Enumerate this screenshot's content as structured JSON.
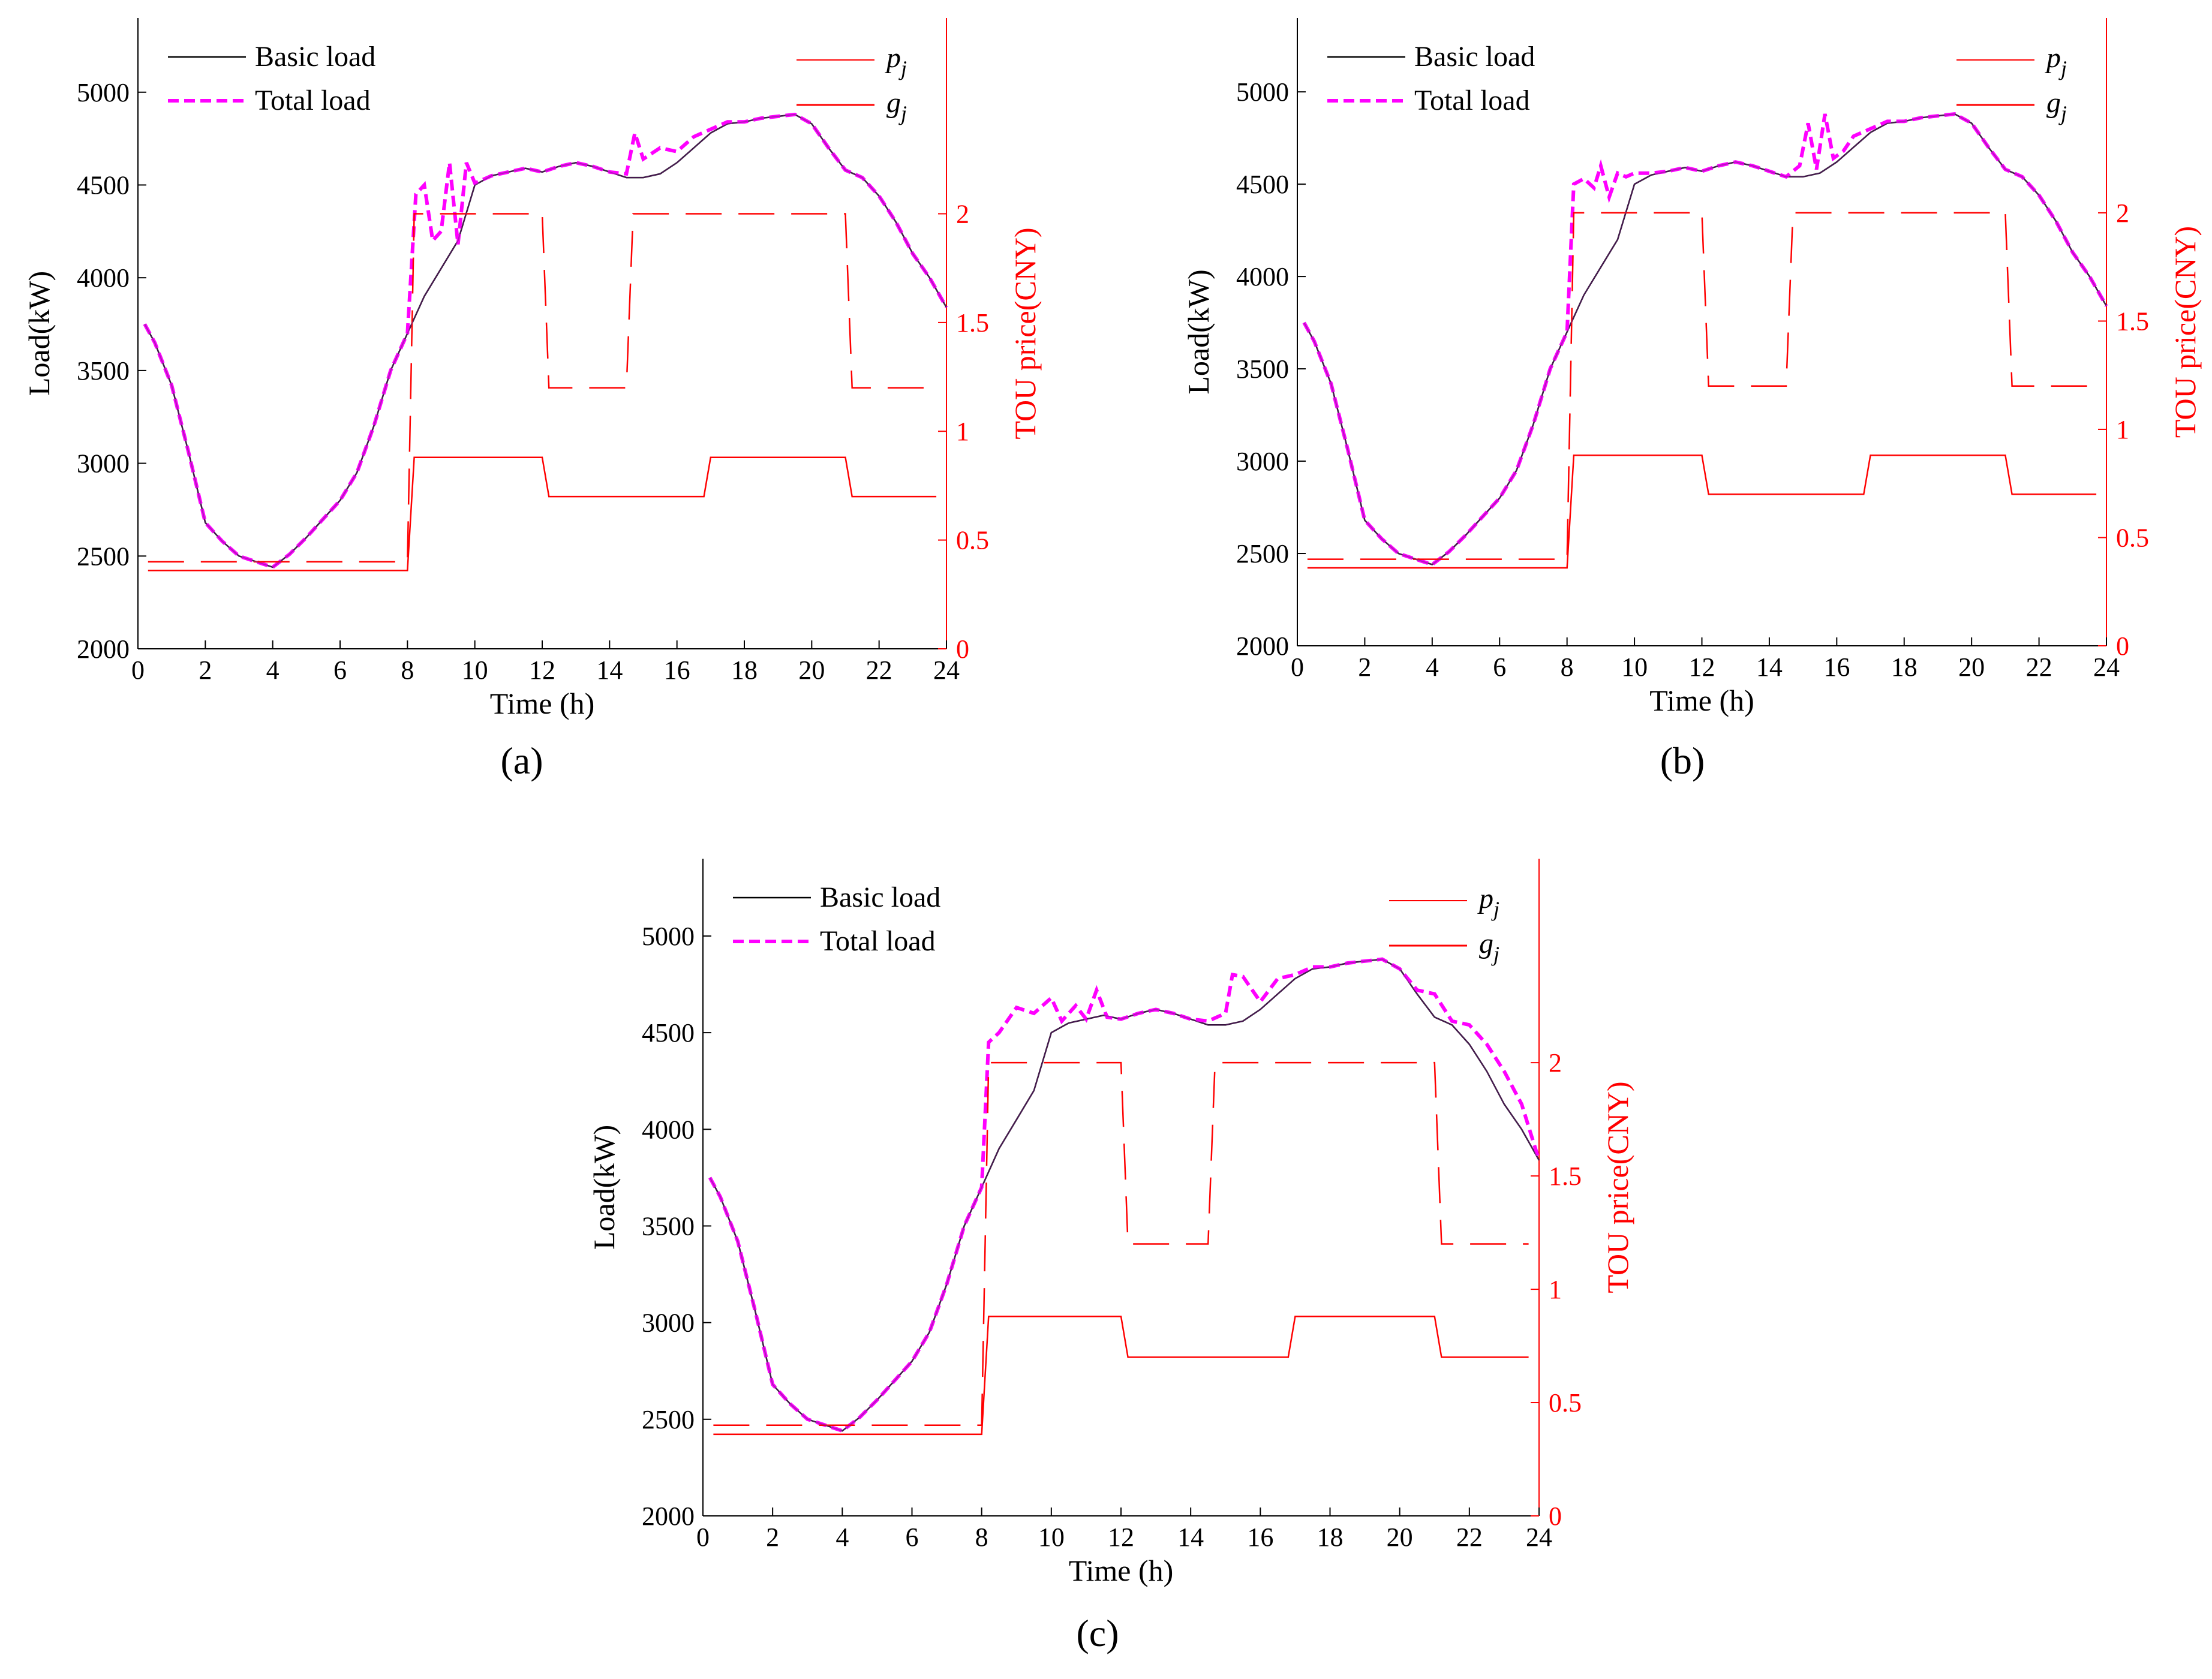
{
  "chart_data": [
    {
      "type": "line",
      "panel": "a",
      "panel_label": "(a)",
      "xlabel": "Time (h)",
      "ylabel": "Load(kW)",
      "y2label": "TOU price(CNY)",
      "xlim": [
        0,
        24
      ],
      "ylim": [
        2000,
        5400
      ],
      "y2lim": [
        0,
        2.9
      ],
      "xticks": [
        0,
        2,
        4,
        6,
        8,
        10,
        12,
        14,
        16,
        18,
        20,
        22,
        24
      ],
      "yticks": [
        2000,
        2500,
        3000,
        3500,
        4000,
        4500,
        5000
      ],
      "y2ticks": [
        0,
        0.5,
        1,
        1.5,
        2
      ],
      "legend": [
        "Basic load",
        "Total load",
        "p",
        "j",
        "g",
        "j"
      ],
      "colors": {
        "basic": "#000000",
        "total": "#ff00ff",
        "price": "#ff0000"
      },
      "series": [
        {
          "name": "Basic load",
          "axis": "left",
          "x": [
            0.2,
            0.5,
            1,
            1.5,
            2,
            2.5,
            3,
            3.5,
            4,
            4.5,
            5,
            5.5,
            6,
            6.5,
            7,
            7.5,
            8,
            8.5,
            9,
            9.5,
            10,
            10.5,
            11,
            11.5,
            12,
            12.5,
            13,
            13.5,
            14,
            14.5,
            15,
            15.5,
            16,
            16.5,
            17,
            17.5,
            18,
            18.5,
            19,
            19.5,
            20,
            20.5,
            21,
            21.5,
            22,
            22.5,
            23,
            23.5,
            24
          ],
          "values": [
            3750,
            3650,
            3420,
            3060,
            2680,
            2580,
            2500,
            2470,
            2440,
            2510,
            2600,
            2700,
            2800,
            2950,
            3200,
            3500,
            3700,
            3900,
            4050,
            4200,
            4500,
            4550,
            4570,
            4590,
            4570,
            4600,
            4620,
            4600,
            4570,
            4540,
            4540,
            4560,
            4620,
            4700,
            4780,
            4830,
            4840,
            4860,
            4870,
            4880,
            4830,
            4700,
            4580,
            4540,
            4440,
            4300,
            4130,
            4000,
            3840
          ]
        },
        {
          "name": "Total load",
          "axis": "left",
          "x": [
            0.2,
            0.5,
            1,
            1.5,
            2,
            2.5,
            3,
            3.5,
            4,
            4.5,
            5,
            5.5,
            6,
            6.5,
            7,
            7.5,
            8,
            8.25,
            8.5,
            8.75,
            9,
            9.25,
            9.5,
            9.75,
            10,
            10.5,
            11,
            11.5,
            12,
            12.5,
            13,
            13.5,
            14,
            14.5,
            14.75,
            15,
            15.5,
            16,
            16.5,
            17,
            17.5,
            18,
            18.5,
            19,
            19.5,
            20,
            20.5,
            21,
            21.5,
            22,
            22.5,
            23,
            23.5,
            24
          ],
          "values": [
            3750,
            3650,
            3420,
            3060,
            2680,
            2580,
            2500,
            2470,
            2440,
            2510,
            2600,
            2700,
            2800,
            2950,
            3200,
            3500,
            3700,
            4450,
            4500,
            4200,
            4250,
            4620,
            4180,
            4620,
            4510,
            4550,
            4570,
            4590,
            4570,
            4600,
            4620,
            4600,
            4570,
            4560,
            4780,
            4640,
            4700,
            4680,
            4760,
            4800,
            4840,
            4840,
            4860,
            4870,
            4880,
            4830,
            4700,
            4580,
            4540,
            4440,
            4300,
            4130,
            4000,
            3840
          ]
        },
        {
          "name": "p_j",
          "axis": "right",
          "style": "dashed",
          "x": [
            0.3,
            8,
            8.2,
            12,
            12.2,
            14.5,
            14.7,
            21,
            21.2,
            23.7
          ],
          "values": [
            0.4,
            0.4,
            2,
            2,
            1.2,
            1.2,
            2,
            2,
            1.2,
            1.2
          ]
        },
        {
          "name": "g_j",
          "axis": "right",
          "style": "solid",
          "x": [
            0.3,
            8,
            8.2,
            12,
            12.2,
            16.8,
            17,
            21,
            21.2,
            23.7
          ],
          "values": [
            0.36,
            0.36,
            0.88,
            0.88,
            0.7,
            0.7,
            0.88,
            0.88,
            0.7,
            0.7
          ]
        }
      ]
    },
    {
      "type": "line",
      "panel": "b",
      "panel_label": "(b)",
      "xlabel": "Time (h)",
      "ylabel": "Load(kW)",
      "y2label": "TOU price(CNY)",
      "xlim": [
        0,
        24
      ],
      "ylim": [
        2000,
        5400
      ],
      "y2lim": [
        0,
        2.9
      ],
      "xticks": [
        0,
        2,
        4,
        6,
        8,
        10,
        12,
        14,
        16,
        18,
        20,
        22,
        24
      ],
      "yticks": [
        2000,
        2500,
        3000,
        3500,
        4000,
        4500,
        5000
      ],
      "y2ticks": [
        0,
        0.5,
        1,
        1.5,
        2
      ],
      "legend": [
        "Basic load",
        "Total load",
        "p",
        "j",
        "g",
        "j"
      ],
      "colors": {
        "basic": "#000000",
        "total": "#ff00ff",
        "price": "#ff0000"
      },
      "series": [
        {
          "name": "Basic load",
          "axis": "left",
          "x": [
            0.2,
            0.5,
            1,
            1.5,
            2,
            2.5,
            3,
            3.5,
            4,
            4.5,
            5,
            5.5,
            6,
            6.5,
            7,
            7.5,
            8,
            8.5,
            9,
            9.5,
            10,
            10.5,
            11,
            11.5,
            12,
            12.5,
            13,
            13.5,
            14,
            14.5,
            15,
            15.5,
            16,
            16.5,
            17,
            17.5,
            18,
            18.5,
            19,
            19.5,
            20,
            20.5,
            21,
            21.5,
            22,
            22.5,
            23,
            23.5,
            24
          ],
          "values": [
            3750,
            3650,
            3420,
            3060,
            2680,
            2580,
            2500,
            2470,
            2440,
            2510,
            2600,
            2700,
            2800,
            2950,
            3200,
            3500,
            3700,
            3900,
            4050,
            4200,
            4500,
            4550,
            4570,
            4590,
            4570,
            4600,
            4620,
            4600,
            4570,
            4540,
            4540,
            4560,
            4620,
            4700,
            4780,
            4830,
            4840,
            4860,
            4870,
            4880,
            4830,
            4700,
            4580,
            4540,
            4440,
            4300,
            4130,
            4000,
            3840
          ]
        },
        {
          "name": "Total load",
          "axis": "left",
          "x": [
            0.2,
            0.5,
            1,
            1.5,
            2,
            2.5,
            3,
            3.5,
            4,
            4.5,
            5,
            5.5,
            6,
            6.5,
            7,
            7.5,
            8,
            8.2,
            8.5,
            8.8,
            9,
            9.25,
            9.5,
            9.75,
            10,
            10.5,
            11,
            11.5,
            12,
            12.5,
            13,
            13.5,
            14,
            14.5,
            14.9,
            15.15,
            15.4,
            15.65,
            15.9,
            16.2,
            16.5,
            17,
            17.5,
            18,
            18.5,
            19,
            19.5,
            20,
            20.5,
            21,
            21.5,
            22,
            22.5,
            23,
            23.5,
            24
          ],
          "values": [
            3750,
            3650,
            3420,
            3060,
            2680,
            2580,
            2500,
            2470,
            2440,
            2510,
            2600,
            2700,
            2800,
            2950,
            3200,
            3500,
            3700,
            4500,
            4530,
            4480,
            4600,
            4430,
            4560,
            4540,
            4560,
            4560,
            4570,
            4590,
            4570,
            4600,
            4620,
            4600,
            4570,
            4540,
            4600,
            4830,
            4580,
            4880,
            4640,
            4680,
            4760,
            4800,
            4840,
            4840,
            4860,
            4870,
            4880,
            4830,
            4700,
            4580,
            4540,
            4440,
            4300,
            4130,
            4000,
            3840
          ]
        },
        {
          "name": "p_j",
          "axis": "right",
          "style": "dashed",
          "x": [
            0.3,
            8,
            8.2,
            12,
            12.2,
            14.5,
            14.7,
            21,
            21.2,
            23.7
          ],
          "values": [
            0.4,
            0.4,
            2,
            2,
            1.2,
            1.2,
            2,
            2,
            1.2,
            1.2
          ]
        },
        {
          "name": "g_j",
          "axis": "right",
          "style": "solid",
          "x": [
            0.3,
            8,
            8.2,
            12,
            12.2,
            16.8,
            17,
            21,
            21.2,
            23.7
          ],
          "values": [
            0.36,
            0.36,
            0.88,
            0.88,
            0.7,
            0.7,
            0.88,
            0.88,
            0.7,
            0.7
          ]
        }
      ]
    },
    {
      "type": "line",
      "panel": "c",
      "panel_label": "(c)",
      "xlabel": "Time (h)",
      "ylabel": "Load(kW)",
      "y2label": "TOU price(CNY)",
      "xlim": [
        0,
        24
      ],
      "ylim": [
        2000,
        5400
      ],
      "y2lim": [
        0,
        2.9
      ],
      "xticks": [
        0,
        2,
        4,
        6,
        8,
        10,
        12,
        14,
        16,
        18,
        20,
        22,
        24
      ],
      "yticks": [
        2000,
        2500,
        3000,
        3500,
        4000,
        4500,
        5000
      ],
      "y2ticks": [
        0,
        0.5,
        1,
        1.5,
        2
      ],
      "legend": [
        "Basic load",
        "Total load",
        "p",
        "j",
        "g",
        "j"
      ],
      "colors": {
        "basic": "#000000",
        "total": "#ff00ff",
        "price": "#ff0000"
      },
      "series": [
        {
          "name": "Basic load",
          "axis": "left",
          "x": [
            0.2,
            0.5,
            1,
            1.5,
            2,
            2.5,
            3,
            3.5,
            4,
            4.5,
            5,
            5.5,
            6,
            6.5,
            7,
            7.5,
            8,
            8.5,
            9,
            9.5,
            10,
            10.5,
            11,
            11.5,
            12,
            12.5,
            13,
            13.5,
            14,
            14.5,
            15,
            15.5,
            16,
            16.5,
            17,
            17.5,
            18,
            18.5,
            19,
            19.5,
            20,
            20.5,
            21,
            21.5,
            22,
            22.5,
            23,
            23.5,
            24
          ],
          "values": [
            3750,
            3650,
            3420,
            3060,
            2680,
            2580,
            2500,
            2470,
            2440,
            2510,
            2600,
            2700,
            2800,
            2950,
            3200,
            3500,
            3700,
            3900,
            4050,
            4200,
            4500,
            4550,
            4570,
            4590,
            4570,
            4600,
            4620,
            4600,
            4570,
            4540,
            4540,
            4560,
            4620,
            4700,
            4780,
            4830,
            4840,
            4860,
            4870,
            4880,
            4830,
            4700,
            4580,
            4540,
            4440,
            4300,
            4130,
            4000,
            3840
          ]
        },
        {
          "name": "Total load",
          "axis": "left",
          "x": [
            0.2,
            0.5,
            1,
            1.5,
            2,
            2.5,
            3,
            3.5,
            4,
            4.5,
            5,
            5.5,
            6,
            6.5,
            7,
            7.5,
            8,
            8.2,
            8.5,
            9,
            9.5,
            10,
            10.3,
            10.7,
            11,
            11.3,
            11.6,
            12,
            12.5,
            13,
            13.5,
            14,
            14.5,
            15,
            15.2,
            15.5,
            16,
            16.5,
            17,
            17.5,
            18,
            18.5,
            19,
            19.5,
            20,
            20.5,
            21,
            21.5,
            22,
            22.5,
            23,
            23.5,
            24
          ],
          "values": [
            3750,
            3650,
            3420,
            3060,
            2680,
            2580,
            2500,
            2470,
            2440,
            2510,
            2600,
            2700,
            2800,
            2950,
            3200,
            3500,
            3700,
            4450,
            4500,
            4630,
            4600,
            4680,
            4560,
            4640,
            4570,
            4720,
            4580,
            4570,
            4600,
            4620,
            4600,
            4570,
            4560,
            4600,
            4800,
            4790,
            4660,
            4780,
            4800,
            4840,
            4840,
            4860,
            4870,
            4880,
            4830,
            4720,
            4700,
            4560,
            4540,
            4440,
            4300,
            4130,
            3840
          ]
        },
        {
          "name": "p_j",
          "axis": "right",
          "style": "dashed",
          "x": [
            0.3,
            8,
            8.2,
            12,
            12.2,
            14.5,
            14.7,
            21,
            21.2,
            23.7
          ],
          "values": [
            0.4,
            0.4,
            2,
            2,
            1.2,
            1.2,
            2,
            2,
            1.2,
            1.2
          ]
        },
        {
          "name": "g_j",
          "axis": "right",
          "style": "solid",
          "x": [
            0.3,
            8,
            8.2,
            12,
            12.2,
            16.8,
            17,
            21,
            21.2,
            23.7
          ],
          "values": [
            0.36,
            0.36,
            0.88,
            0.88,
            0.7,
            0.7,
            0.88,
            0.88,
            0.7,
            0.7
          ]
        }
      ]
    }
  ]
}
